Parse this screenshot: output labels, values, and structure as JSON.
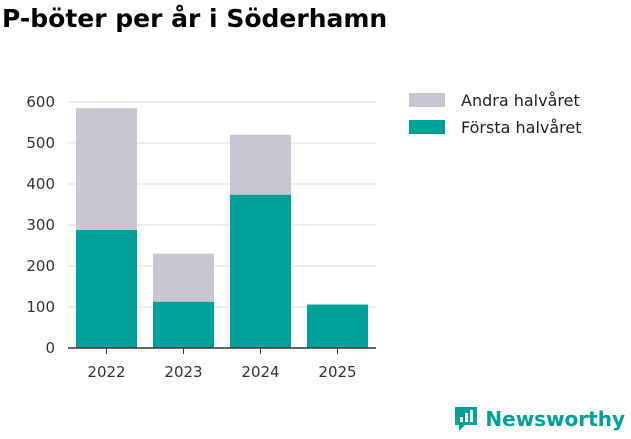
{
  "chart_data": {
    "type": "bar",
    "stacked": true,
    "title": "P-böter per år i Söderhamn",
    "categories": [
      "2022",
      "2023",
      "2024",
      "2025"
    ],
    "series": [
      {
        "name": "Första halvåret",
        "color": "#00a19a",
        "values": [
          288,
          113,
          374,
          106
        ]
      },
      {
        "name": "Andra halvåret",
        "color": "#c8c6d3",
        "values": [
          297,
          117,
          146,
          0
        ]
      }
    ],
    "legend": [
      "Andra halvåret",
      "Första halvåret"
    ],
    "yticks": [
      0,
      100,
      200,
      300,
      400,
      500,
      600
    ],
    "ylim": [
      0,
      600
    ],
    "xlabel": "",
    "ylabel": "",
    "grid": true,
    "legend_position": "right"
  },
  "brand": {
    "name": "Newsworthy",
    "color": "#00a19a"
  }
}
